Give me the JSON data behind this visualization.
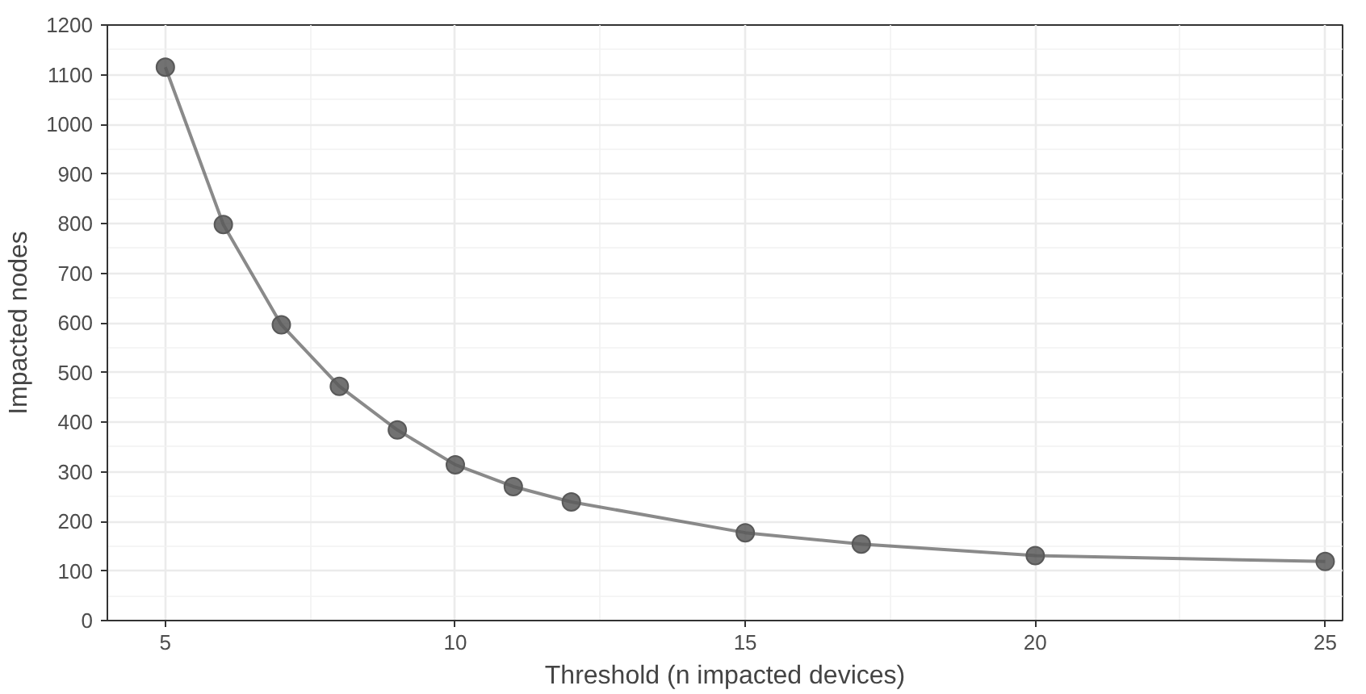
{
  "chart_data": {
    "type": "line",
    "xlabel": "Threshold (n impacted devices)",
    "ylabel": "Impacted nodes",
    "x": [
      5,
      6,
      7,
      8,
      9,
      10,
      11,
      12,
      15,
      17,
      20,
      25
    ],
    "series": [
      {
        "color": "#595959",
        "values": [
          1115,
          798,
          596,
          472,
          384,
          314,
          270,
          239,
          177,
          154,
          131,
          119
        ]
      }
    ],
    "xlim": [
      4,
      25.3
    ],
    "ylim": [
      0,
      1200
    ],
    "xticks": [
      5,
      10,
      15,
      20,
      25
    ],
    "yticks": [
      0,
      100,
      200,
      300,
      400,
      500,
      600,
      700,
      800,
      900,
      1000,
      1100,
      1200
    ],
    "grid": true,
    "marker": "circle",
    "line_style": "solid"
  }
}
